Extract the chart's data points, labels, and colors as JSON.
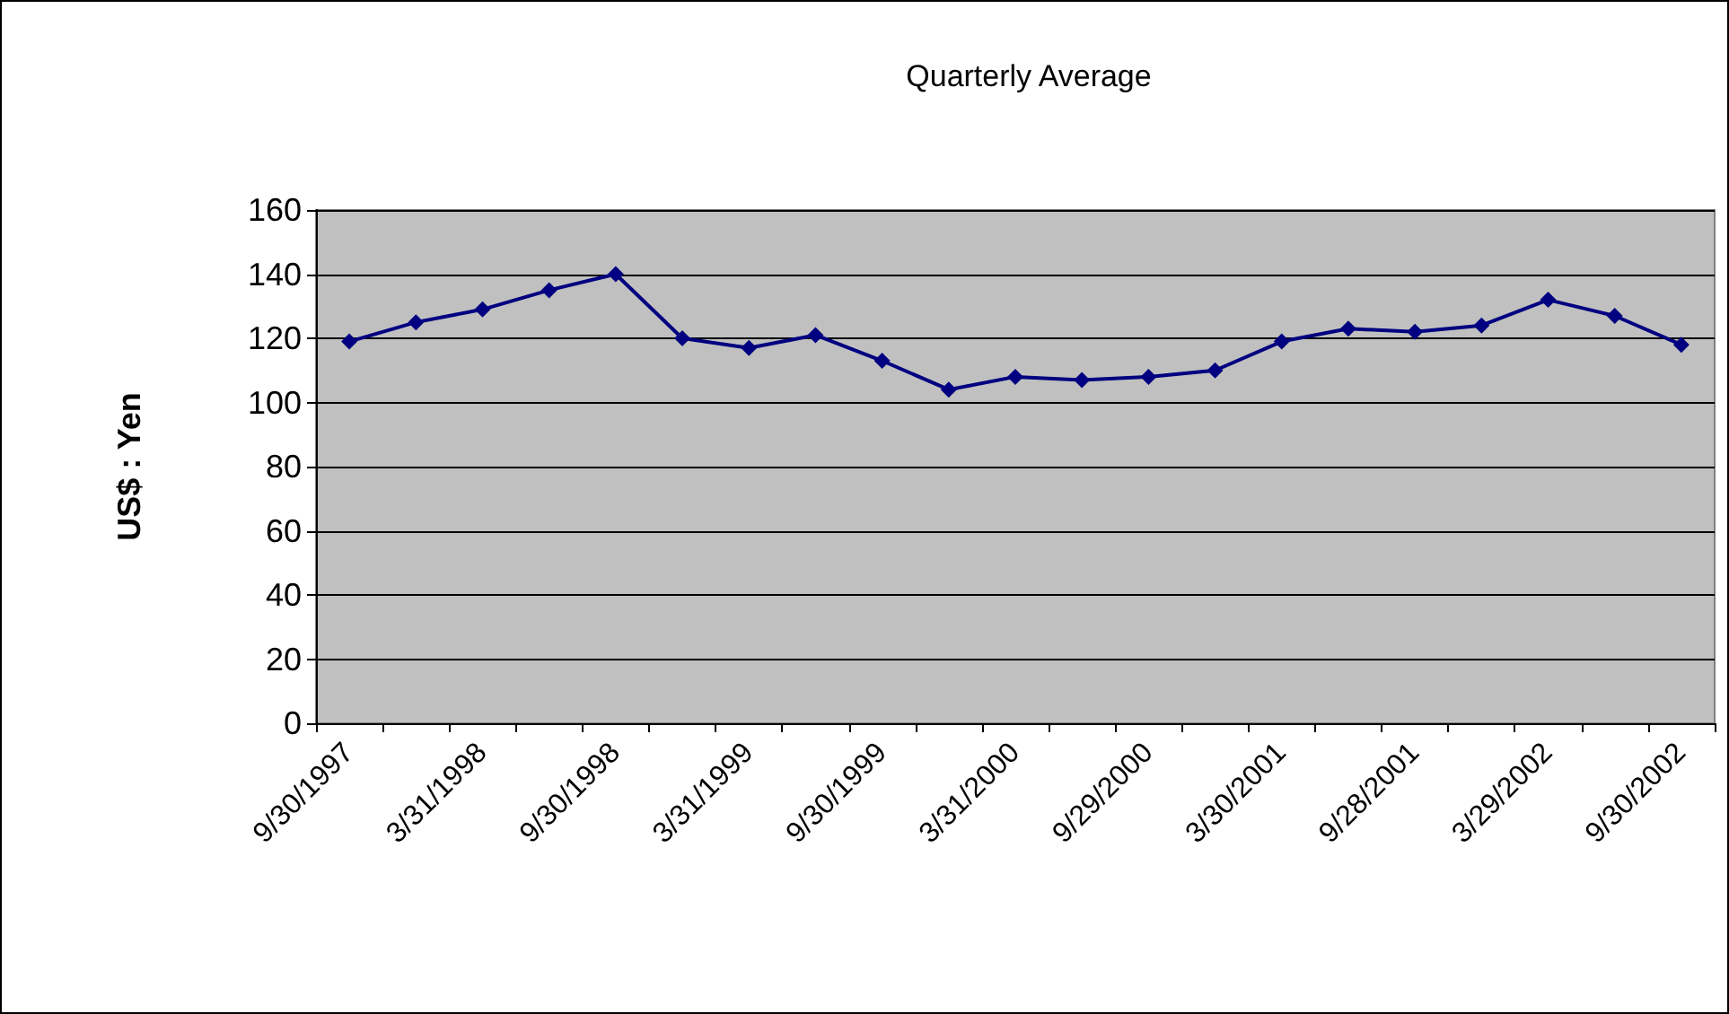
{
  "chart_data": {
    "type": "line",
    "title": "Quarterly Average",
    "ylabel": "US$ : Yen",
    "categories": [
      "9/30/1997",
      null,
      "3/31/1998",
      null,
      "9/30/1998",
      null,
      "3/31/1999",
      null,
      "9/30/1999",
      null,
      "3/31/2000",
      null,
      "9/29/2000",
      null,
      "3/30/2001",
      null,
      "9/28/2001",
      null,
      "3/29/2002",
      null,
      "9/30/2002"
    ],
    "series": [
      {
        "color": "#000080",
        "values": [
          119,
          125,
          129,
          135,
          140,
          120,
          117,
          121,
          113,
          104,
          108,
          107,
          108,
          110,
          119,
          123,
          122,
          124,
          132,
          127,
          118
        ]
      }
    ],
    "ylim": [
      0,
      160
    ],
    "yticks": [
      0,
      20,
      40,
      60,
      80,
      100,
      120,
      140,
      160
    ],
    "grid": "y",
    "marker": "diamond",
    "line_style": "solid"
  }
}
